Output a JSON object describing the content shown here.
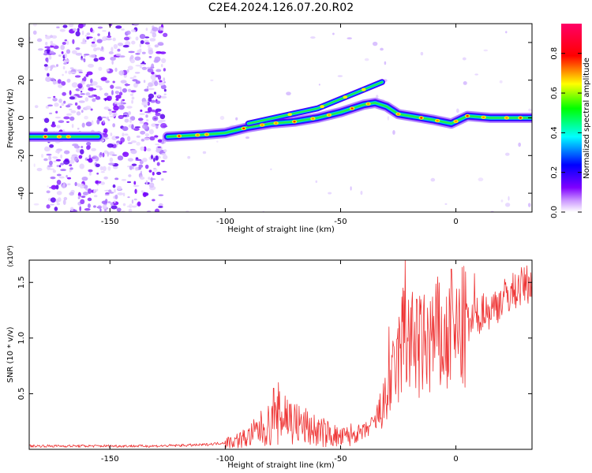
{
  "title": "C2E4.2024.126.07.20.R02",
  "chart_data": [
    {
      "type": "heatmap",
      "xlabel": "Height of straight line (km)",
      "ylabel": "Frequency (Hz)",
      "xlim": [
        -185,
        33
      ],
      "ylim": [
        -50,
        50
      ],
      "x_ticks": [
        -150,
        -100,
        -50,
        0
      ],
      "y_ticks": [
        -40,
        -20,
        0,
        20,
        40
      ],
      "grid": false,
      "colorbar": {
        "label": "Normalized spectral amplitude",
        "range": [
          0.0,
          0.95
        ],
        "ticks": [
          "0.0",
          "0.2",
          "0.4",
          "0.6",
          "0.8"
        ],
        "colors": [
          "#ffffff",
          "#cc99ff",
          "#7f00ff",
          "#0000ff",
          "#00ffff",
          "#00ff00",
          "#ffff00",
          "#ff0000",
          "#ff0066"
        ]
      },
      "ridge": [
        {
          "x": -185,
          "y": -10
        },
        {
          "x": -170,
          "y": -10
        },
        {
          "x": -155,
          "y": -10
        },
        {
          "x": -125,
          "y": -10
        },
        {
          "x": -110,
          "y": -9
        },
        {
          "x": -100,
          "y": -8
        },
        {
          "x": -90,
          "y": -5
        },
        {
          "x": -80,
          "y": -3
        },
        {
          "x": -70,
          "y": -2
        },
        {
          "x": -60,
          "y": 0
        },
        {
          "x": -50,
          "y": 3
        },
        {
          "x": -40,
          "y": 7
        },
        {
          "x": -35,
          "y": 8
        },
        {
          "x": -30,
          "y": 6
        },
        {
          "x": -25,
          "y": 2
        },
        {
          "x": -20,
          "y": 1
        },
        {
          "x": -10,
          "y": -1
        },
        {
          "x": -2,
          "y": -3
        },
        {
          "x": 5,
          "y": 1
        },
        {
          "x": 15,
          "y": 0
        },
        {
          "x": 33,
          "y": 0
        }
      ],
      "upper_branch": [
        {
          "x": -90,
          "y": -3
        },
        {
          "x": -75,
          "y": 1
        },
        {
          "x": -60,
          "y": 5
        },
        {
          "x": -50,
          "y": 10
        },
        {
          "x": -40,
          "y": 15
        },
        {
          "x": -32,
          "y": 19
        }
      ]
    },
    {
      "type": "line",
      "xlabel": "Height of straight line (km)",
      "ylabel": "SNR (10 * v/v)",
      "y_multiplier": "(x10⁴)",
      "xlim": [
        -185,
        33
      ],
      "ylim": [
        0,
        1.7
      ],
      "x_ticks": [
        -150,
        -100,
        -50,
        0
      ],
      "y_ticks": [
        "0.5",
        "1.0",
        "1.5"
      ],
      "grid": false,
      "series": [
        {
          "color": "#ee3333",
          "x": [
            -185,
            -170,
            -150,
            -130,
            -110,
            -100,
            -95,
            -90,
            -85,
            -80,
            -75,
            -72,
            -70,
            -65,
            -60,
            -55,
            -50,
            -45,
            -40,
            -35,
            -30,
            -25,
            -22,
            -20,
            -15,
            -10,
            -5,
            0,
            5,
            10,
            15,
            20,
            25,
            30,
            33
          ],
          "y": [
            0.03,
            0.03,
            0.03,
            0.03,
            0.04,
            0.06,
            0.08,
            0.11,
            0.18,
            0.22,
            0.3,
            0.28,
            0.24,
            0.2,
            0.16,
            0.14,
            0.1,
            0.13,
            0.15,
            0.25,
            0.45,
            0.8,
            1.05,
            0.95,
            0.9,
            1.0,
            0.95,
            1.02,
            1.1,
            1.2,
            1.25,
            1.35,
            1.42,
            1.48,
            1.5
          ],
          "spikes": [
            {
              "x": -79,
              "y": 0.55
            },
            {
              "x": -77,
              "y": 0.6
            },
            {
              "x": -74,
              "y": 0.48
            },
            {
              "x": -29,
              "y": 1.1
            },
            {
              "x": -23,
              "y": 1.45
            },
            {
              "x": -22,
              "y": 1.7
            },
            {
              "x": -17,
              "y": 1.35
            },
            {
              "x": -8,
              "y": 1.55
            },
            {
              "x": -2,
              "y": 1.62
            },
            {
              "x": 8,
              "y": 1.58
            },
            {
              "x": 12,
              "y": 1.4
            }
          ]
        }
      ]
    }
  ]
}
